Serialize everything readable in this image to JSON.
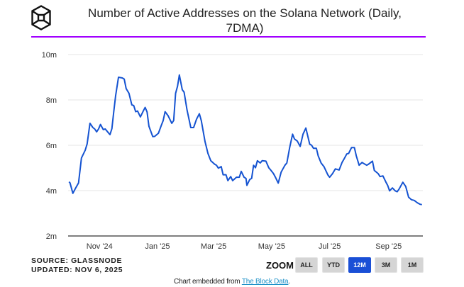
{
  "header": {
    "title_line1": "Number of Active Addresses on the Solana Network (Daily,",
    "title_line2": "7DMA)",
    "logo_icon": "cube-logo-icon",
    "rule_color": "#a100ff"
  },
  "footer": {
    "source": "SOURCE: GLASSNODE",
    "updated": "UPDATED: NOV 6, 2025",
    "embed_prefix": "Chart embedded from ",
    "embed_link": "The Block Data",
    "embed_suffix": "."
  },
  "zoom": {
    "label": "ZOOM",
    "buttons": [
      {
        "label": "ALL",
        "active": false
      },
      {
        "label": "YTD",
        "active": false
      },
      {
        "label": "12M",
        "active": true
      },
      {
        "label": "3M",
        "active": false
      },
      {
        "label": "1M",
        "active": false
      }
    ],
    "active_color": "#1a4fd6"
  },
  "chart_data": {
    "type": "line",
    "title": "Number of Active Addresses on the Solana Network (Daily, 7DMA)",
    "xlabel": "",
    "ylabel": "",
    "xlim": [
      "2024-09-29",
      "2025-10-07"
    ],
    "ylim": [
      2,
      10
    ],
    "y_unit": "m",
    "yticks": [
      {
        "value": 2,
        "label": "2m"
      },
      {
        "value": 4,
        "label": "4m"
      },
      {
        "value": 6,
        "label": "6m"
      },
      {
        "value": 8,
        "label": "8m"
      },
      {
        "value": 10,
        "label": "10m"
      }
    ],
    "xticks": [
      {
        "date": "2024-11-01",
        "label": "Nov '24"
      },
      {
        "date": "2025-01-01",
        "label": "Jan '25"
      },
      {
        "date": "2025-03-01",
        "label": "Mar '25"
      },
      {
        "date": "2025-05-01",
        "label": "May '25"
      },
      {
        "date": "2025-07-01",
        "label": "Jul '25"
      },
      {
        "date": "2025-09-01",
        "label": "Sep '25"
      }
    ],
    "grid": true,
    "line_color": "#1553d1",
    "series": [
      {
        "x": [
          "2024-09-30",
          "2024-10-01",
          "2024-10-04",
          "2024-10-07",
          "2024-10-10",
          "2024-10-12",
          "2024-10-13",
          "2024-10-17",
          "2024-10-19",
          "2024-10-22",
          "2024-10-25",
          "2024-10-27",
          "2024-10-29",
          "2024-10-31",
          "2024-11-02",
          "2024-11-05",
          "2024-11-07",
          "2024-11-10",
          "2024-11-12",
          "2024-11-14",
          "2024-11-16",
          "2024-11-18",
          "2024-11-21",
          "2024-11-25",
          "2024-11-27",
          "2024-11-29",
          "2024-12-02",
          "2024-12-05",
          "2024-12-07",
          "2024-12-09",
          "2024-12-11",
          "2024-12-14",
          "2024-12-17",
          "2024-12-19",
          "2024-12-21",
          "2024-12-23",
          "2024-12-27",
          "2024-12-29",
          "2025-01-02",
          "2025-01-05",
          "2025-01-07",
          "2025-01-09",
          "2025-01-12",
          "2025-01-16",
          "2025-01-18",
          "2025-01-20",
          "2025-01-22",
          "2025-01-24",
          "2025-01-27",
          "2025-01-29",
          "2025-02-01",
          "2025-02-05",
          "2025-02-08",
          "2025-02-11",
          "2025-02-14",
          "2025-02-16",
          "2025-02-20",
          "2025-02-23",
          "2025-02-26",
          "2025-03-02",
          "2025-03-04",
          "2025-03-06",
          "2025-03-09",
          "2025-03-11",
          "2025-03-14",
          "2025-03-16",
          "2025-03-19",
          "2025-03-21",
          "2025-03-25",
          "2025-03-28",
          "2025-03-30",
          "2025-04-02",
          "2025-04-04",
          "2025-04-05",
          "2025-04-08",
          "2025-04-10",
          "2025-04-12",
          "2025-04-14",
          "2025-04-16",
          "2025-04-19",
          "2025-04-21",
          "2025-04-25",
          "2025-04-28",
          "2025-04-30",
          "2025-05-03",
          "2025-05-05",
          "2025-05-08",
          "2025-05-11",
          "2025-05-15",
          "2025-05-17",
          "2025-05-20",
          "2025-05-23",
          "2025-05-25",
          "2025-05-28",
          "2025-05-31",
          "2025-06-03",
          "2025-06-06",
          "2025-06-10",
          "2025-06-12",
          "2025-06-14",
          "2025-06-17",
          "2025-06-19",
          "2025-06-22",
          "2025-06-25",
          "2025-06-29",
          "2025-07-01",
          "2025-07-04",
          "2025-07-07",
          "2025-07-11",
          "2025-07-14",
          "2025-07-16",
          "2025-07-19",
          "2025-07-21",
          "2025-07-24",
          "2025-07-27",
          "2025-07-29",
          "2025-08-01",
          "2025-08-04",
          "2025-08-07",
          "2025-08-09",
          "2025-08-11",
          "2025-08-15",
          "2025-08-17",
          "2025-08-21",
          "2025-08-23",
          "2025-08-26",
          "2025-08-29",
          "2025-08-31",
          "2025-09-02",
          "2025-09-05",
          "2025-09-08",
          "2025-09-10",
          "2025-09-12",
          "2025-09-16",
          "2025-09-19",
          "2025-09-22",
          "2025-09-25",
          "2025-09-28",
          "2025-10-01",
          "2025-10-04",
          "2025-10-06"
        ],
        "values": [
          4.39,
          4.34,
          3.88,
          4.12,
          4.34,
          5.06,
          5.44,
          5.78,
          6.06,
          6.97,
          6.78,
          6.72,
          6.59,
          6.72,
          6.92,
          6.69,
          6.72,
          6.57,
          6.47,
          6.73,
          7.47,
          8.19,
          9.0,
          8.97,
          8.92,
          8.5,
          8.29,
          7.78,
          7.75,
          7.48,
          7.51,
          7.25,
          7.51,
          7.67,
          7.47,
          6.84,
          6.38,
          6.39,
          6.53,
          6.88,
          7.09,
          7.48,
          7.31,
          6.97,
          7.09,
          8.29,
          8.6,
          9.1,
          8.45,
          8.34,
          7.56,
          6.78,
          6.78,
          7.15,
          7.39,
          7.09,
          6.16,
          5.64,
          5.32,
          5.17,
          5.12,
          4.99,
          5.06,
          4.7,
          4.7,
          4.44,
          4.62,
          4.44,
          4.59,
          4.59,
          4.85,
          4.59,
          4.54,
          4.23,
          4.49,
          4.54,
          5.12,
          5.01,
          5.32,
          5.22,
          5.32,
          5.3,
          5.01,
          4.91,
          4.75,
          4.59,
          4.33,
          4.82,
          5.12,
          5.22,
          5.9,
          6.49,
          6.28,
          6.18,
          5.95,
          6.49,
          6.76,
          6.05,
          6.0,
          5.87,
          5.87,
          5.53,
          5.22,
          5.06,
          4.7,
          4.59,
          4.75,
          4.96,
          4.91,
          5.24,
          5.38,
          5.62,
          5.64,
          5.9,
          5.9,
          5.53,
          5.12,
          5.24,
          5.17,
          5.12,
          5.17,
          5.3,
          4.89,
          4.75,
          4.62,
          4.65,
          4.39,
          4.23,
          3.99,
          4.12,
          3.99,
          3.95,
          4.07,
          4.37,
          4.18,
          3.71,
          3.6,
          3.57,
          3.47,
          3.4,
          3.38
        ]
      }
    ]
  }
}
